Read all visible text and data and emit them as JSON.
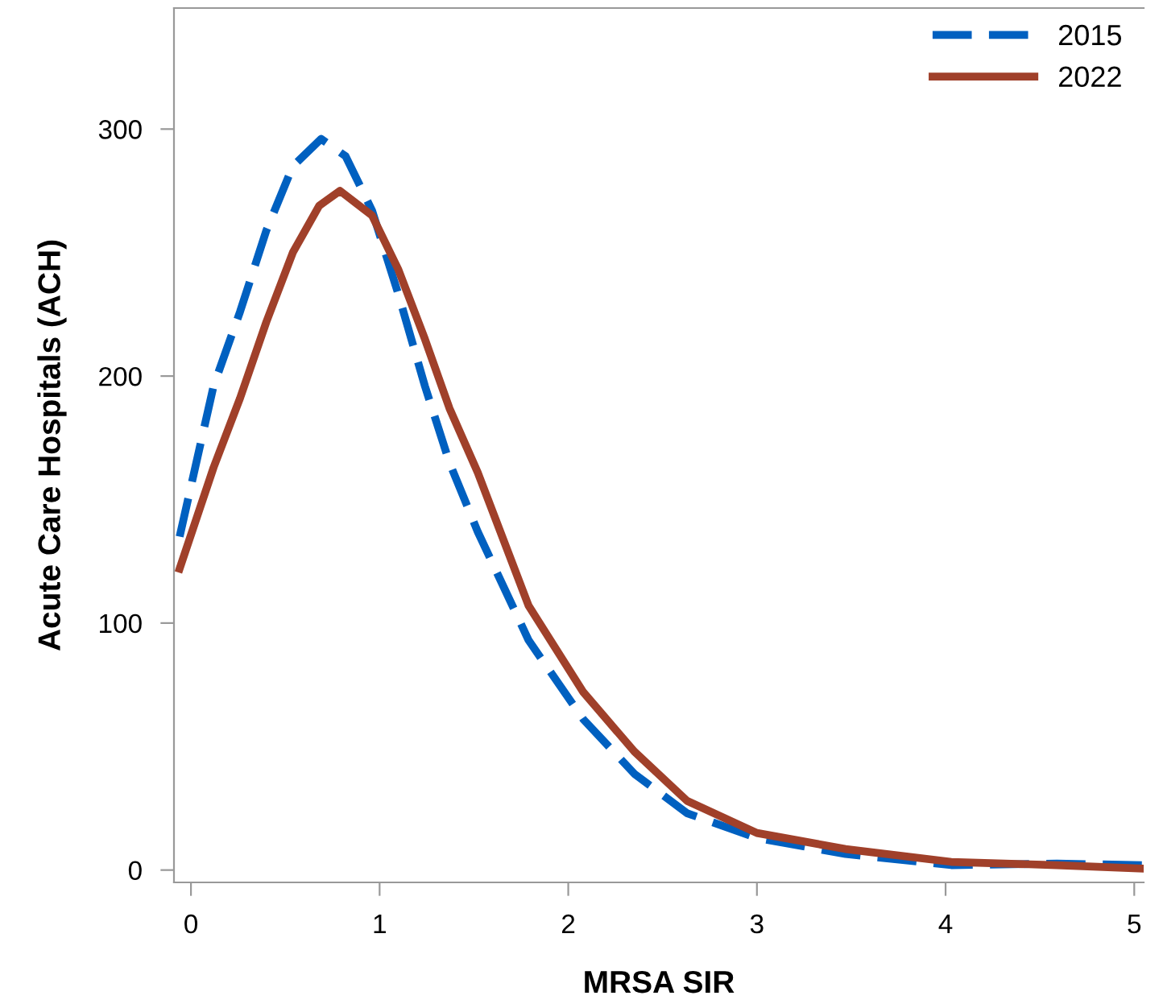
{
  "chart_data": {
    "type": "line",
    "xlabel": "MRSA SIR",
    "ylabel": "Acute Care Hospitals (ACH)",
    "xlim": [
      -0.09,
      5.05
    ],
    "ylim": [
      -5,
      349
    ],
    "xticks": [
      0,
      1,
      2,
      3,
      4,
      5
    ],
    "yticks": [
      0,
      100,
      200,
      300
    ],
    "grid": false,
    "legend": "top right",
    "marker": "none",
    "series": [
      {
        "name": "2015",
        "color": "#0060c0",
        "line_style": "dashed",
        "x": [
          -0.06,
          0.12,
          0.26,
          0.4,
          0.54,
          0.69,
          0.82,
          0.96,
          1.1,
          1.24,
          1.37,
          1.52,
          1.79,
          2.08,
          2.35,
          2.63,
          3.0,
          3.47,
          4.03,
          4.59,
          5.05
        ],
        "values": [
          135,
          196,
          226,
          259,
          285,
          296,
          289,
          267,
          233,
          196,
          165,
          137,
          93,
          61,
          39,
          23,
          13,
          6.5,
          2,
          2.6,
          2
        ]
      },
      {
        "name": "2022",
        "color": "#a0402a",
        "line_style": "solid",
        "x": [
          -0.06,
          0.12,
          0.26,
          0.4,
          0.54,
          0.68,
          0.79,
          0.96,
          1.1,
          1.24,
          1.37,
          1.52,
          1.79,
          2.08,
          2.35,
          2.63,
          3.0,
          3.47,
          4.03,
          4.59,
          5.05
        ],
        "values": [
          122,
          163,
          191,
          222,
          250,
          269,
          275,
          265,
          243,
          215,
          187,
          161,
          107,
          72,
          48,
          28,
          15,
          8.5,
          3.3,
          2,
          0.6
        ]
      }
    ]
  }
}
